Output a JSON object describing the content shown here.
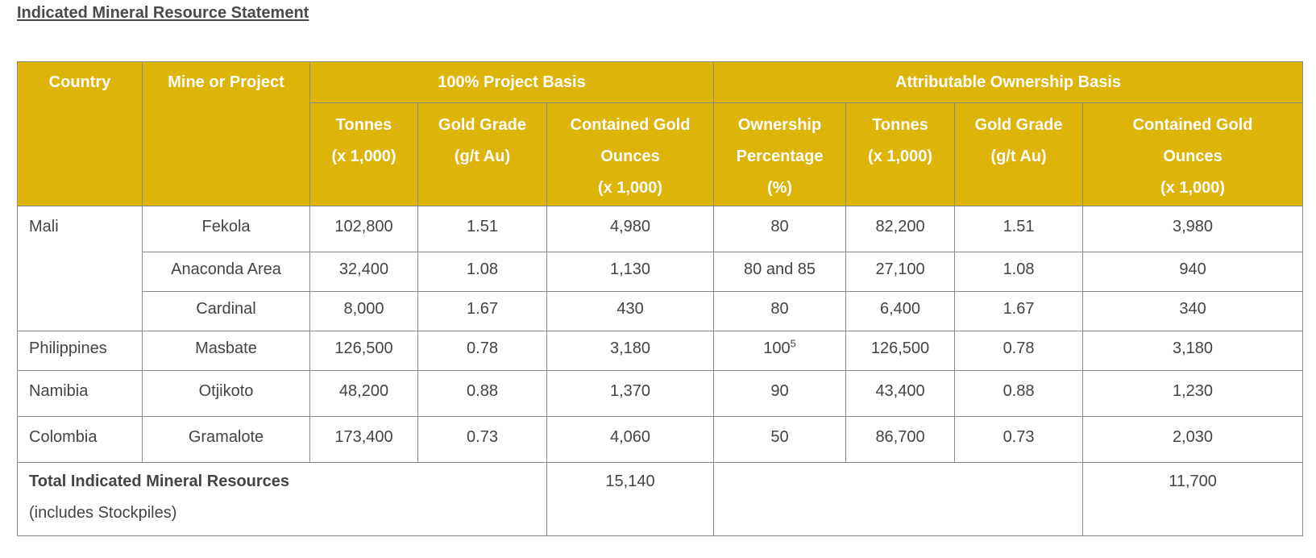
{
  "title": "Indicated Mineral Resource Statement",
  "header": {
    "country": "Country",
    "mine": "Mine or Project",
    "group_project": "100% Project Basis",
    "group_attrib": "Attributable Ownership Basis",
    "tonnes": [
      "Tonnes",
      "(x 1,000)"
    ],
    "grade": [
      "Gold Grade",
      "(g/t Au)"
    ],
    "contained": [
      "Contained Gold",
      "Ounces",
      "(x 1,000)"
    ],
    "ownership": [
      "Ownership",
      "Percentage",
      "(%)"
    ]
  },
  "rows": [
    {
      "country": "Mali",
      "mine": "Fekola",
      "p_tonnes": "102,800",
      "p_grade": "1.51",
      "p_ounces": "4,980",
      "own_pct": "80",
      "own_fn": "",
      "a_tonnes": "82,200",
      "a_grade": "1.51",
      "a_ounces": "3,980"
    },
    {
      "country": "",
      "mine": "Anaconda Area",
      "p_tonnes": "32,400",
      "p_grade": "1.08",
      "p_ounces": "1,130",
      "own_pct": "80 and 85",
      "own_fn": "",
      "a_tonnes": "27,100",
      "a_grade": "1.08",
      "a_ounces": "940"
    },
    {
      "country": "",
      "mine": "Cardinal",
      "p_tonnes": "8,000",
      "p_grade": "1.67",
      "p_ounces": "430",
      "own_pct": "80",
      "own_fn": "",
      "a_tonnes": "6,400",
      "a_grade": "1.67",
      "a_ounces": "340"
    },
    {
      "country": "Philippines",
      "mine": "Masbate",
      "p_tonnes": "126,500",
      "p_grade": "0.78",
      "p_ounces": "3,180",
      "own_pct": "100",
      "own_fn": "5",
      "a_tonnes": "126,500",
      "a_grade": "0.78",
      "a_ounces": "3,180"
    },
    {
      "country": "Namibia",
      "mine": "Otjikoto",
      "p_tonnes": "48,200",
      "p_grade": "0.88",
      "p_ounces": "1,370",
      "own_pct": "90",
      "own_fn": "",
      "a_tonnes": "43,400",
      "a_grade": "0.88",
      "a_ounces": "1,230"
    },
    {
      "country": "Colombia",
      "mine": "Gramalote",
      "p_tonnes": "173,400",
      "p_grade": "0.73",
      "p_ounces": "4,060",
      "own_pct": "50",
      "own_fn": "",
      "a_tonnes": "86,700",
      "a_grade": "0.73",
      "a_ounces": "2,030"
    }
  ],
  "total": {
    "label": "Total Indicated Mineral Resources",
    "sublabel": "(includes Stockpiles)",
    "project_ounces": "15,140",
    "attrib_ounces": "11,700"
  },
  "colors": {
    "header_bg": "#deb409",
    "header_text": "#ffffff",
    "border": "#8a8a8a",
    "body_text": "#444444"
  }
}
